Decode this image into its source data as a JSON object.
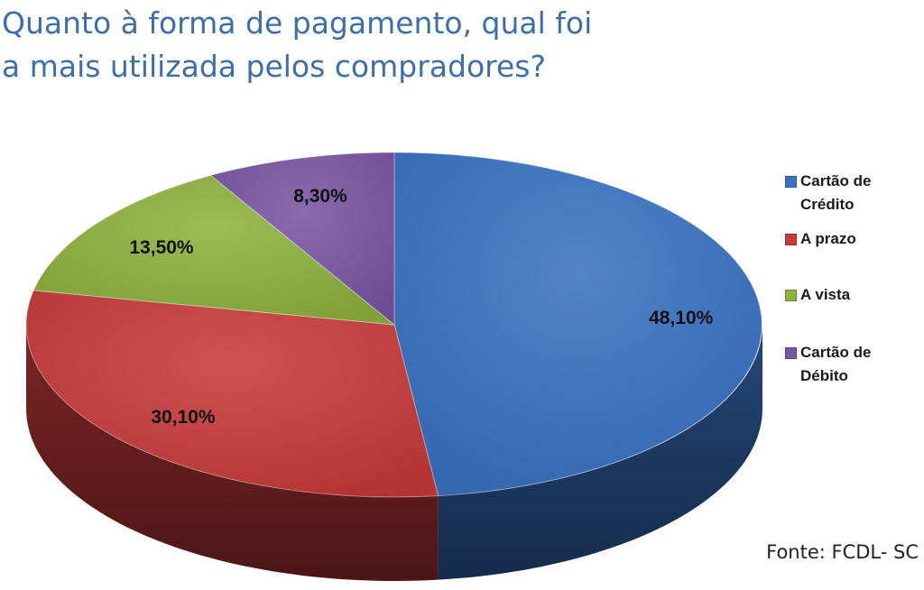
{
  "title_lines": [
    "Quanto à forma de pagamento, qual foi",
    "a mais utilizada pelos compradores?"
  ],
  "source": "Fonte: FCDL- SC",
  "chart_data": {
    "type": "pie",
    "style": "3d",
    "legend_position": "right",
    "slices": [
      {
        "label": "Cartão de Crédito",
        "legend_lines": [
          "Cartão de",
          "Crédito"
        ],
        "value": 48.1,
        "display": "48,10%",
        "color": "#3a72c4"
      },
      {
        "label": "A prazo",
        "legend_lines": [
          "A prazo"
        ],
        "value": 30.1,
        "display": "30,10%",
        "color": "#c93b3b"
      },
      {
        "label": "A vista",
        "legend_lines": [
          "A vista"
        ],
        "value": 13.5,
        "display": "13,50%",
        "color": "#8db33e"
      },
      {
        "label": "Cartão de Débito",
        "legend_lines": [
          "Cartão de",
          "Débito"
        ],
        "value": 8.3,
        "display": "8,30%",
        "color": "#7b56a4"
      }
    ]
  }
}
